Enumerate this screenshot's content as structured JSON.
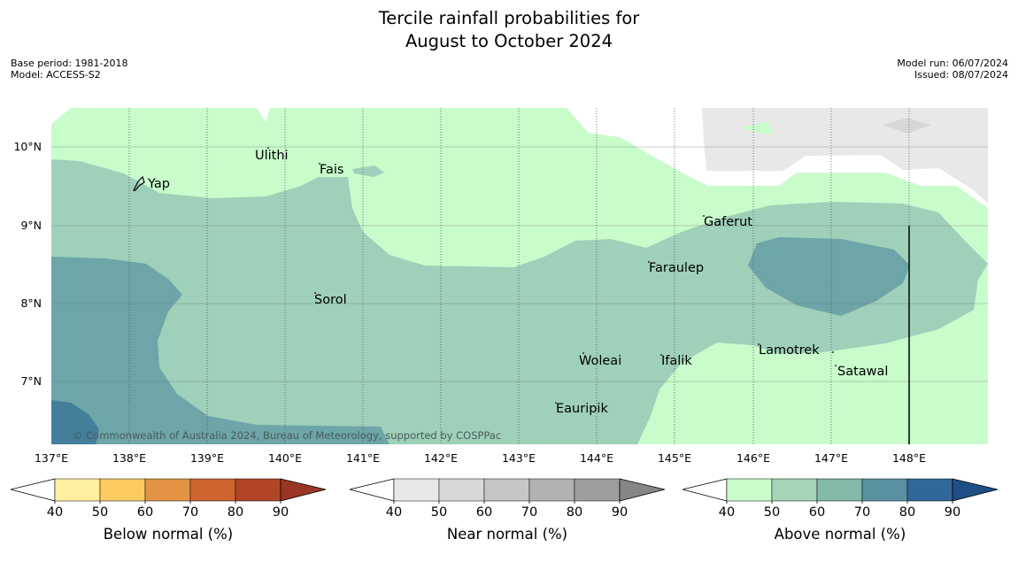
{
  "title": {
    "line1": "Tercile rainfall probabilities for",
    "line2": "August to October 2024"
  },
  "meta_left": {
    "base_period": "Base period: 1981-2018",
    "model": "Model: ACCESS-S2"
  },
  "meta_right": {
    "model_run": "Model run: 06/07/2024",
    "issued": "Issued: 08/07/2024"
  },
  "lon_labels": [
    "137°E",
    "138°E",
    "139°E",
    "140°E",
    "141°E",
    "142°E",
    "143°E",
    "144°E",
    "145°E",
    "146°E",
    "147°E",
    "148°E"
  ],
  "lat_labels": [
    "10°N",
    "9°N",
    "8°N",
    "7°N"
  ],
  "places": [
    {
      "name": "Yap"
    },
    {
      "name": "Ulithi"
    },
    {
      "name": "Fais"
    },
    {
      "name": "Gaferut"
    },
    {
      "name": "Faraulep"
    },
    {
      "name": "Sorol"
    },
    {
      "name": "Lamotrek"
    },
    {
      "name": "Woleai"
    },
    {
      "name": "Ifalik"
    },
    {
      "name": "Satawal"
    },
    {
      "name": "Eauripik"
    }
  ],
  "copyright": "© Commonwealth of Australia 2024, Bureau of Meteorology, supported by COSPPac",
  "colorbars": [
    {
      "label": "Below normal (%)",
      "ticks": [
        "40",
        "50",
        "60",
        "70",
        "80",
        "90"
      ],
      "colors": [
        "#fff0a0",
        "#fecb63",
        "#e29444",
        "#cf6431",
        "#b24526",
        "#9a3523"
      ]
    },
    {
      "label": "Near normal (%)",
      "ticks": [
        "40",
        "50",
        "60",
        "70",
        "80",
        "90"
      ],
      "colors": [
        "#e8e8e8",
        "#d8d8d8",
        "#c6c6c6",
        "#b2b2b2",
        "#9e9e9e",
        "#868686"
      ]
    },
    {
      "label": "Above normal (%)",
      "ticks": [
        "40",
        "50",
        "60",
        "70",
        "80",
        "90"
      ],
      "colors": [
        "#c8fccb",
        "#a3d5b6",
        "#84b9a9",
        "#5a91a0",
        "#31679b",
        "#1d4f84"
      ]
    }
  ]
}
